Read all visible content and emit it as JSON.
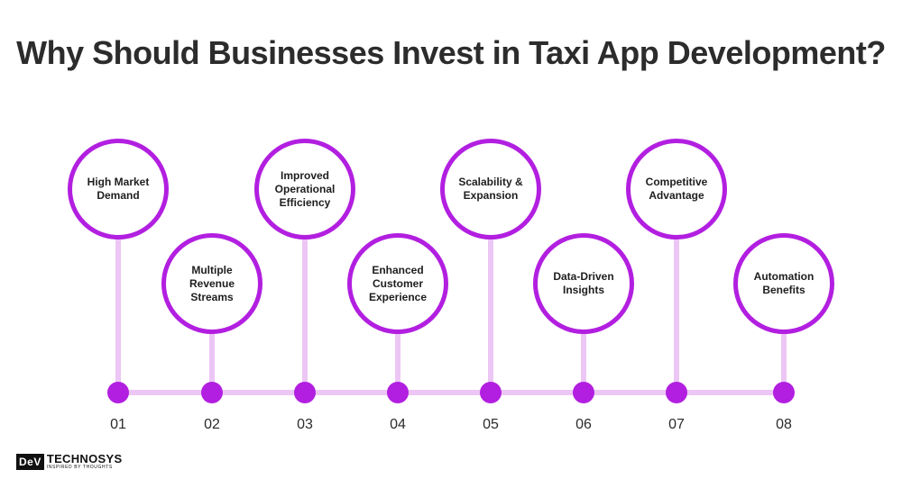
{
  "title": "Why Should Businesses Invest in Taxi App Development?",
  "accent_color": "#b21fe0",
  "connector_color": "#ecc6f5",
  "steps": [
    {
      "number": "01",
      "label": "High Market Demand"
    },
    {
      "number": "02",
      "label": "Multiple Revenue Streams"
    },
    {
      "number": "03",
      "label": "Improved Operational Efficiency"
    },
    {
      "number": "04",
      "label": "Enhanced Customer Experience"
    },
    {
      "number": "05",
      "label": "Scalability & Expansion"
    },
    {
      "number": "06",
      "label": "Data-Driven Insights"
    },
    {
      "number": "07",
      "label": "Competitive Advantage"
    },
    {
      "number": "08",
      "label": "Automation Benefits"
    }
  ],
  "logo": {
    "mark": "DeV",
    "name": "TECHNOSYS",
    "tagline": "INSPIRED BY THOUGHTS"
  }
}
